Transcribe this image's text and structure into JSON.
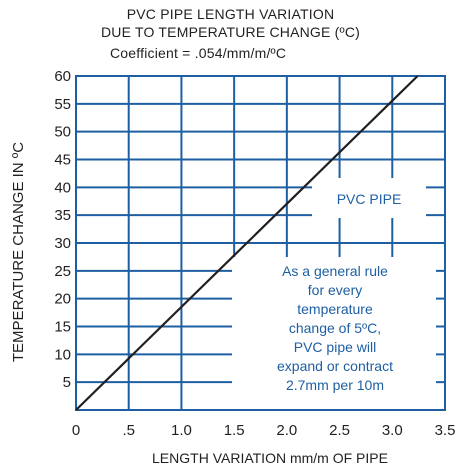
{
  "chart_data": {
    "type": "line",
    "title": "PVC PIPE LENGTH VARIATION",
    "subtitle": "DUE TO TEMPERATURE CHANGE (ºC)",
    "coefficient": "Coefficient = .054/mm/m/ºC",
    "xlabel": "LENGTH VARIATION mm/m OF PIPE",
    "ylabel": "TEMPERATURE CHANGE IN ºC",
    "xlim": [
      0,
      3.5
    ],
    "ylim": [
      0,
      60
    ],
    "x_ticks": [
      0,
      0.5,
      1.0,
      1.5,
      2.0,
      2.5,
      3.0,
      3.5
    ],
    "x_tick_labels": [
      "0",
      ".5",
      "1.0",
      "1.5",
      "2.0",
      "2.5",
      "3.0",
      "3.5"
    ],
    "y_ticks": [
      5,
      10,
      15,
      20,
      25,
      30,
      35,
      40,
      45,
      50,
      55,
      60
    ],
    "y_tick_labels": [
      "5",
      "10",
      "15",
      "20",
      "25",
      "30",
      "35",
      "40",
      "45",
      "50",
      "55",
      "60"
    ],
    "grid": true,
    "grid_color": "#1e5fa3",
    "line_color": "#231f20",
    "text_color": "#1e5fa3",
    "series": [
      {
        "name": "PVC PIPE",
        "x": [
          0,
          3.24
        ],
        "y": [
          0,
          60
        ]
      }
    ],
    "annotations": {
      "series_label": "PVC PIPE",
      "note_lines": [
        "As a general rule",
        "for every",
        "temperature",
        "change of 5ºC,",
        "PVC pipe will",
        "expand or contract",
        "2.7mm per 10m"
      ]
    }
  }
}
